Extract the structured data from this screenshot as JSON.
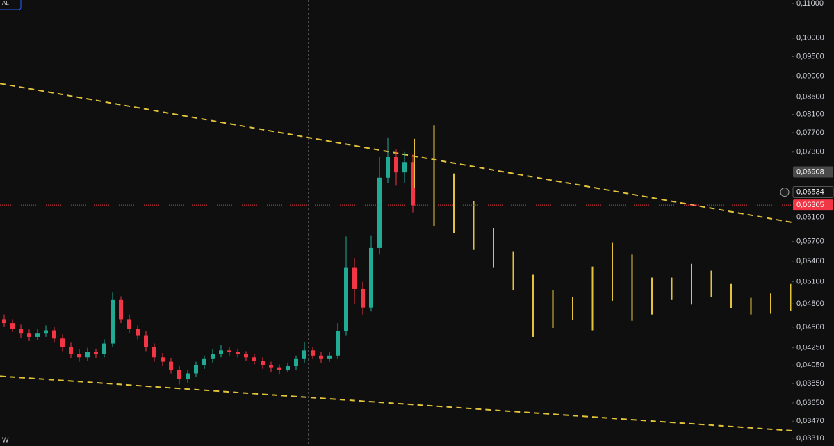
{
  "chart_data": {
    "type": "candlestick",
    "log_scale": true,
    "ylim": [
      0.0324,
      0.1111
    ],
    "yticks": [
      {
        "value": 0.11,
        "label": "0,11000"
      },
      {
        "value": 0.1,
        "label": "0,10000"
      },
      {
        "value": 0.095,
        "label": "0,09500"
      },
      {
        "value": 0.09,
        "label": "0,09000"
      },
      {
        "value": 0.085,
        "label": "0,08500"
      },
      {
        "value": 0.081,
        "label": "0,08100"
      },
      {
        "value": 0.077,
        "label": "0,07700"
      },
      {
        "value": 0.073,
        "label": "0,07300"
      },
      {
        "value": 0.061,
        "label": "0,06100"
      },
      {
        "value": 0.057,
        "label": "0,05700"
      },
      {
        "value": 0.054,
        "label": "0,05400"
      },
      {
        "value": 0.051,
        "label": "0,05100"
      },
      {
        "value": 0.048,
        "label": "0,04800"
      },
      {
        "value": 0.045,
        "label": "0,04500"
      },
      {
        "value": 0.0425,
        "label": "0,04250"
      },
      {
        "value": 0.0405,
        "label": "0,04050"
      },
      {
        "value": 0.0385,
        "label": "0,03850"
      },
      {
        "value": 0.0365,
        "label": "0,03650"
      },
      {
        "value": 0.0347,
        "label": "0,03470"
      },
      {
        "value": 0.0331,
        "label": "0,03310"
      }
    ],
    "up_color": "#22ab94",
    "down_color": "#f23645",
    "open": [
      0.046,
      0.0455,
      0.0448,
      0.0442,
      0.0438,
      0.0442,
      0.0446,
      0.0436,
      0.0426,
      0.0418,
      0.0414,
      0.042,
      0.0418,
      0.043,
      0.0485,
      0.046,
      0.0448,
      0.044,
      0.0426,
      0.0414,
      0.0409,
      0.04,
      0.039,
      0.0396,
      0.0405,
      0.0412,
      0.0418,
      0.0422,
      0.042,
      0.0418,
      0.0414,
      0.041,
      0.0405,
      0.0402,
      0.04,
      0.0404,
      0.0412,
      0.0422,
      0.0416,
      0.0412,
      0.0416,
      0.0445,
      0.053,
      0.05,
      0.0475,
      0.056,
      0.068,
      0.072,
      0.069,
      0.071
    ],
    "high": [
      0.0466,
      0.046,
      0.0453,
      0.0447,
      0.0448,
      0.0452,
      0.045,
      0.0441,
      0.0431,
      0.0423,
      0.0425,
      0.0424,
      0.0435,
      0.0495,
      0.049,
      0.0466,
      0.0452,
      0.0445,
      0.043,
      0.0419,
      0.0413,
      0.0404,
      0.04,
      0.0409,
      0.0416,
      0.0424,
      0.0428,
      0.0426,
      0.0424,
      0.0421,
      0.0418,
      0.0414,
      0.0409,
      0.0406,
      0.0408,
      0.0416,
      0.0432,
      0.0426,
      0.042,
      0.042,
      0.0455,
      0.0578,
      0.0545,
      0.051,
      0.058,
      0.072,
      0.076,
      0.0735,
      0.073,
      0.0725
    ],
    "low": [
      0.045,
      0.0444,
      0.0437,
      0.0433,
      0.0434,
      0.0438,
      0.0431,
      0.0421,
      0.0413,
      0.0409,
      0.041,
      0.0413,
      0.0414,
      0.0426,
      0.0455,
      0.0443,
      0.0435,
      0.0421,
      0.0409,
      0.0404,
      0.0396,
      0.0384,
      0.0386,
      0.0392,
      0.0401,
      0.0408,
      0.0414,
      0.0416,
      0.0414,
      0.041,
      0.0406,
      0.0401,
      0.0397,
      0.0395,
      0.0397,
      0.04,
      0.0408,
      0.0412,
      0.0408,
      0.0409,
      0.0412,
      0.044,
      0.048,
      0.0466,
      0.047,
      0.055,
      0.067,
      0.0665,
      0.067,
      0.0618
    ],
    "close": [
      0.0455,
      0.0448,
      0.0442,
      0.0438,
      0.0442,
      0.0446,
      0.0436,
      0.0426,
      0.0418,
      0.0414,
      0.042,
      0.0418,
      0.043,
      0.0485,
      0.046,
      0.0448,
      0.044,
      0.0426,
      0.0414,
      0.0409,
      0.04,
      0.039,
      0.0396,
      0.0405,
      0.0412,
      0.0418,
      0.0422,
      0.042,
      0.0418,
      0.0414,
      0.041,
      0.0405,
      0.0402,
      0.04,
      0.0404,
      0.0412,
      0.0422,
      0.0416,
      0.0412,
      0.0416,
      0.0445,
      0.053,
      0.05,
      0.0475,
      0.056,
      0.068,
      0.072,
      0.069,
      0.071,
      0.063
    ],
    "projection": {
      "color": "#e2c33a",
      "high": [
        0.0757,
        0.0786,
        0.0688,
        0.0637,
        0.0592,
        0.0554,
        0.052,
        0.0498,
        0.0489,
        0.0532,
        0.0568,
        0.055,
        0.0516,
        0.0516,
        0.0536,
        0.0526,
        0.0507,
        0.0488,
        0.0494,
        0.0507
      ],
      "low": [
        0.0661,
        0.0595,
        0.0584,
        0.0557,
        0.053,
        0.0498,
        0.0438,
        0.0449,
        0.0459,
        0.0446,
        0.0484,
        0.0458,
        0.0466,
        0.0485,
        0.0479,
        0.0489,
        0.0474,
        0.0466,
        0.0467,
        0.0471
      ]
    },
    "trendlines": {
      "color": "#e2c33a",
      "lines": [
        [
          0.0882,
          0.0601
        ],
        [
          0.0393,
          0.0338
        ]
      ]
    },
    "markers": [
      {
        "value": 0.06908,
        "label": "0,06908",
        "color": "#4a4a4a"
      },
      {
        "value": 0.06534,
        "label": "0,06534",
        "color": "#131313"
      },
      {
        "value": 0.06305,
        "label": "0,06305",
        "color": "#f23645"
      }
    ],
    "badge": "AL",
    "corner_label": "W"
  }
}
